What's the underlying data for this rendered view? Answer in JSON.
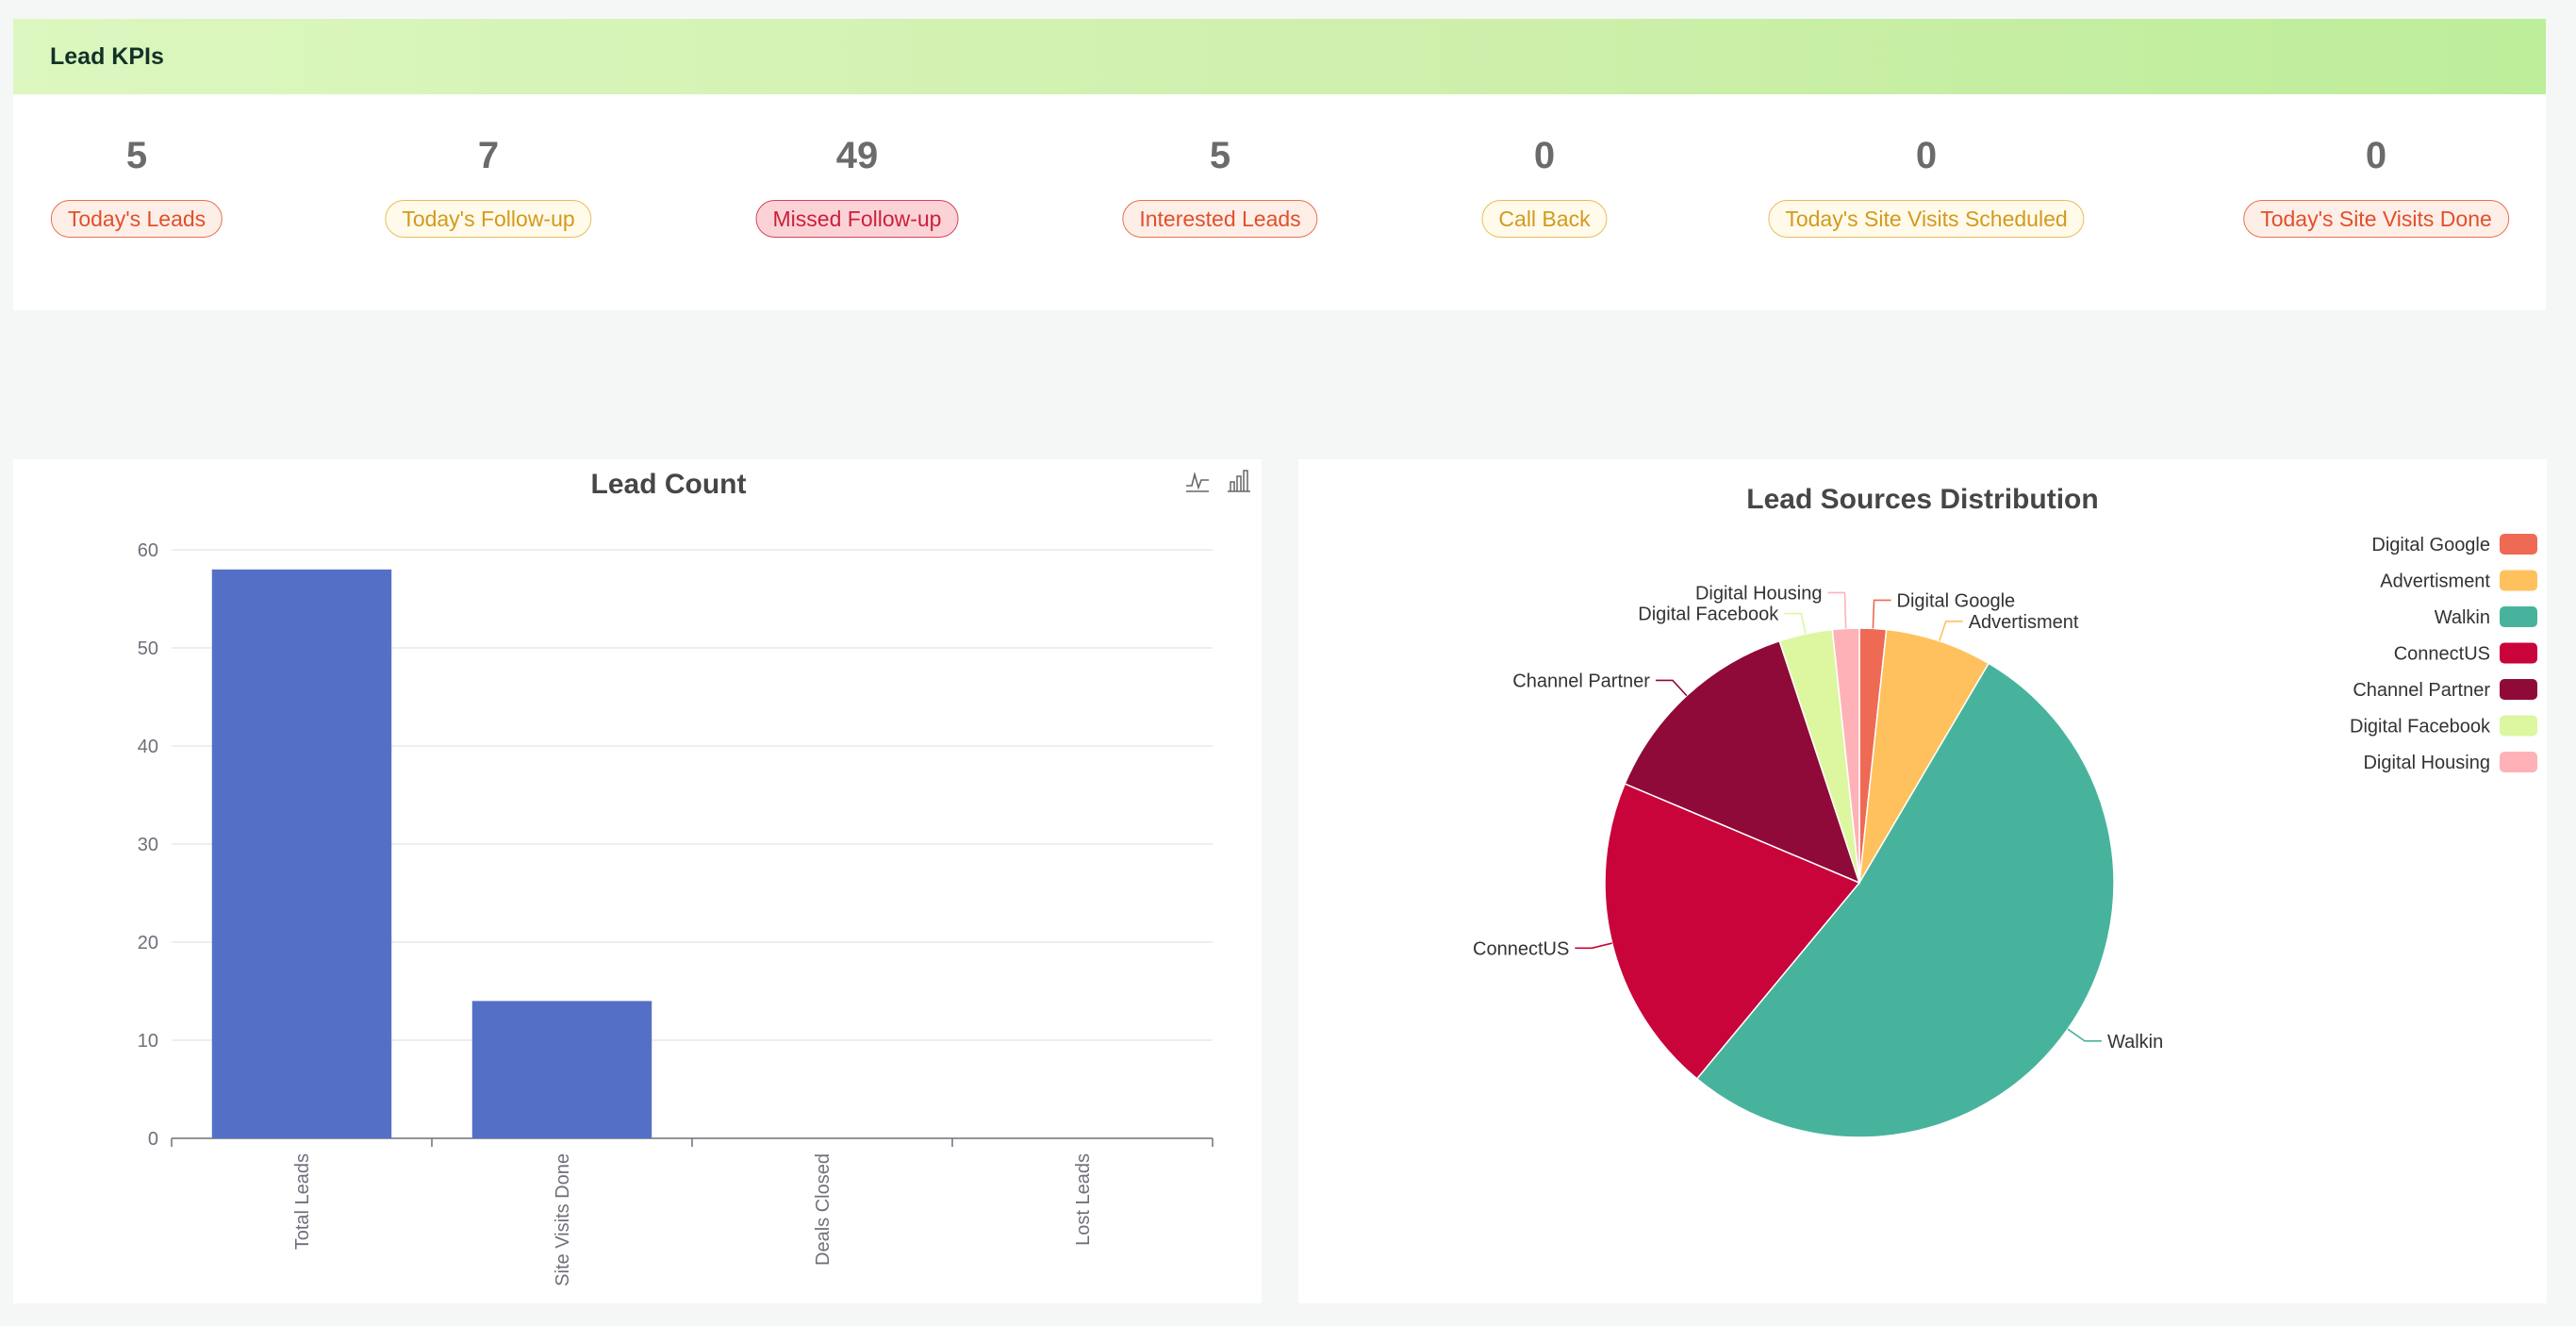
{
  "kpi": {
    "title": "Lead KPIs",
    "items": [
      {
        "value": "5",
        "label": "Today's Leads",
        "style": "red"
      },
      {
        "value": "7",
        "label": "Today's Follow-up",
        "style": "yellow"
      },
      {
        "value": "49",
        "label": "Missed Follow-up",
        "style": "pink"
      },
      {
        "value": "5",
        "label": "Interested Leads",
        "style": "red"
      },
      {
        "value": "0",
        "label": "Call Back",
        "style": "yellow"
      },
      {
        "value": "0",
        "label": "Today's Site Visits Scheduled",
        "style": "yellow"
      },
      {
        "value": "0",
        "label": "Today's Site Visits Done",
        "style": "red"
      }
    ]
  },
  "bar_chart": {
    "toolbox": [
      "line-chart-icon",
      "bar-chart-icon"
    ],
    "chart_data": {
      "type": "bar",
      "title": "Lead Count",
      "categories": [
        "Total Leads",
        "Site Visits Done",
        "Deals Closed",
        "Lost Leads"
      ],
      "values": [
        58,
        14,
        0,
        0
      ],
      "ylim": [
        0,
        60
      ],
      "yticks": [
        0,
        10,
        20,
        30,
        40,
        50,
        60
      ],
      "grid": true,
      "color": "#5470c6"
    }
  },
  "pie_chart": {
    "chart_data": {
      "type": "pie",
      "title": "Lead Sources Distribution",
      "legend_position": "top-right",
      "slices": [
        {
          "label": "Digital Google",
          "value": 1,
          "color": "#ee6a54"
        },
        {
          "label": "Advertisment",
          "value": 4,
          "color": "#ffc15e"
        },
        {
          "label": "Walkin",
          "value": 31,
          "color": "#48b39c"
        },
        {
          "label": "ConnectUS",
          "value": 12,
          "color": "#c8043a"
        },
        {
          "label": "Channel Partner",
          "value": 8,
          "color": "#8f0a39"
        },
        {
          "label": "Digital Facebook",
          "value": 2,
          "color": "#dcf7a0"
        },
        {
          "label": "Digital Housing",
          "value": 1,
          "color": "#ffb1b8"
        }
      ]
    }
  }
}
